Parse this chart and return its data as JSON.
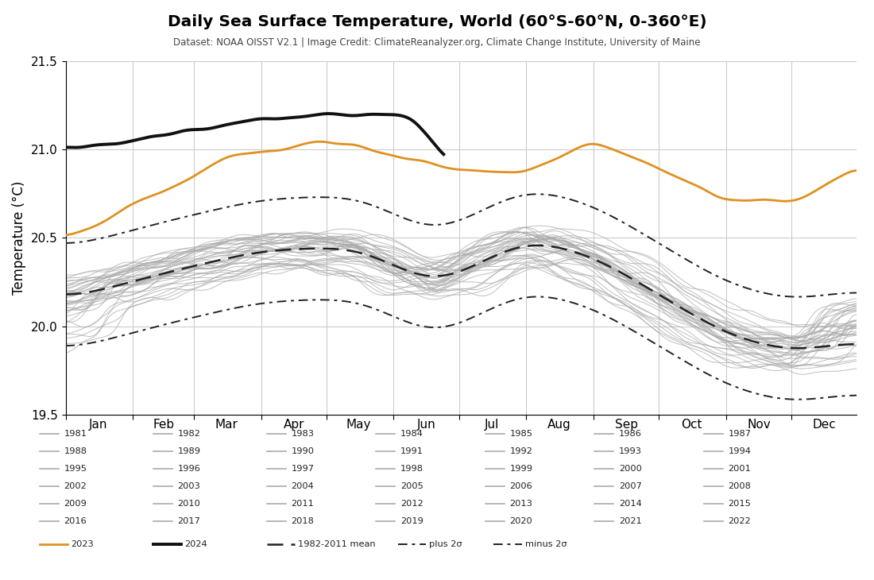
{
  "title": "Daily Sea Surface Temperature, World (60°S-60°N, 0-360°E)",
  "subtitle": "Dataset: NOAA OISST V2.1 | Image Credit: ClimateReanalyzer.org, Climate Change Institute, University of Maine",
  "ylabel": "Temperature (°C)",
  "ylim": [
    19.5,
    21.5
  ],
  "yticks": [
    19.5,
    20.0,
    20.5,
    21.0,
    21.5
  ],
  "months": [
    "Jan",
    "Feb",
    "Mar",
    "Apr",
    "May",
    "Jun",
    "Jul",
    "Aug",
    "Sep",
    "Oct",
    "Nov",
    "Dec"
  ],
  "bg_color": "#ffffff",
  "gray_color": "#aaaaaa",
  "mean_color": "#222222",
  "year2024_color": "#111111",
  "year2023_color": "#e09020",
  "historical_years": [
    1981,
    1982,
    1983,
    1984,
    1985,
    1986,
    1987,
    1988,
    1989,
    1990,
    1991,
    1992,
    1993,
    1994,
    1995,
    1996,
    1997,
    1998,
    1999,
    2000,
    2001,
    2002,
    2003,
    2004,
    2005,
    2006,
    2007,
    2008,
    2009,
    2010,
    2011,
    2012,
    2013,
    2014,
    2015,
    2016,
    2017,
    2018,
    2019,
    2020,
    2021,
    2022
  ]
}
